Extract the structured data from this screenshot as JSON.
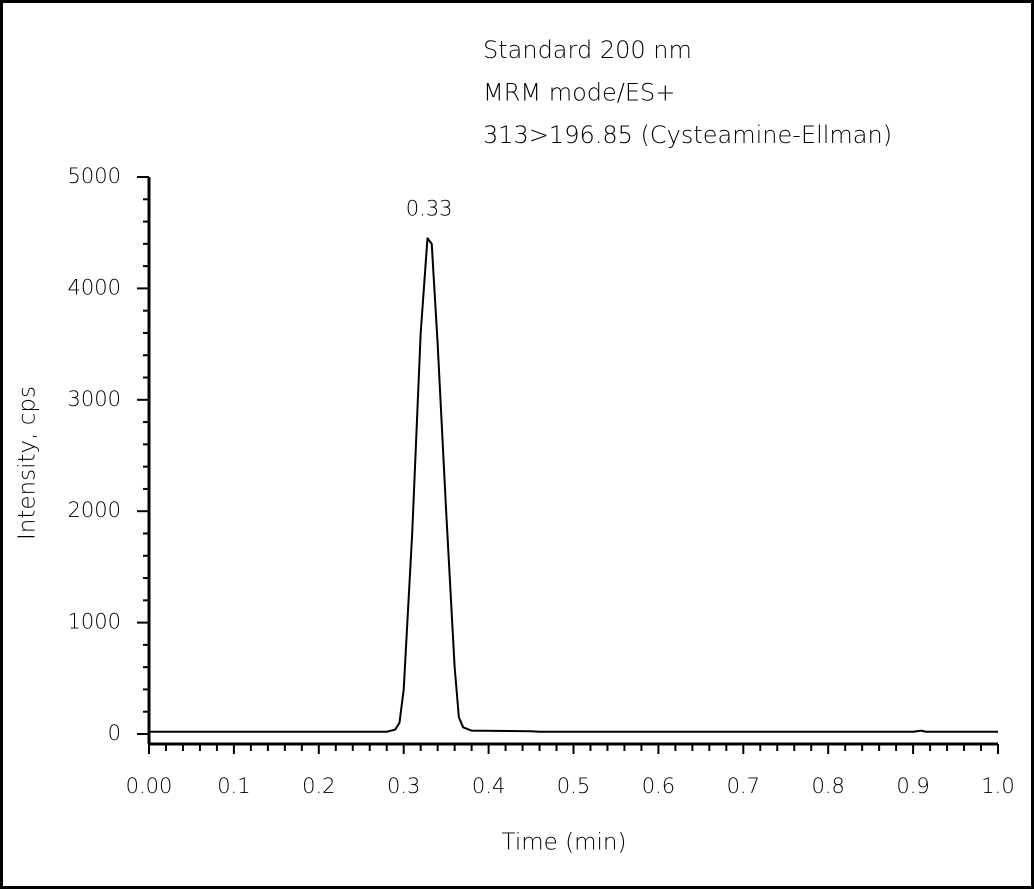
{
  "chart_data": {
    "type": "line",
    "title_lines": [
      "Standard 200 nm",
      "MRM mode/ES+",
      "313>196.85 (Cysteamine-Ellman)"
    ],
    "x_label": "Time (min)",
    "y_label": "Intensity, cps",
    "x": [
      0.0,
      0.28,
      0.29,
      0.295,
      0.3,
      0.31,
      0.32,
      0.328,
      0.333,
      0.34,
      0.35,
      0.36,
      0.365,
      0.37,
      0.38,
      0.45,
      0.46,
      0.9,
      0.91,
      0.915,
      1.0
    ],
    "series": [
      {
        "name": "313>196.85",
        "color": "#000000",
        "values": [
          20,
          20,
          40,
          100,
          400,
          1800,
          3600,
          4450,
          4400,
          3500,
          2000,
          600,
          150,
          60,
          30,
          25,
          20,
          20,
          30,
          20,
          20
        ]
      }
    ],
    "annotations": [
      {
        "text": "0.33",
        "x": 0.33,
        "y": 4450
      }
    ],
    "xlim": [
      0,
      1
    ],
    "ylim": [
      0,
      5000
    ],
    "xticks": [
      {
        "value": 0,
        "label": "0.00"
      },
      0.1,
      0.2,
      0.3,
      0.4,
      0.5,
      0.6,
      0.7,
      0.8,
      0.9,
      {
        "value": 1,
        "label": "1.0"
      }
    ],
    "yticks": [
      0,
      1000,
      2000,
      3000,
      4000,
      5000
    ],
    "grid": false
  }
}
